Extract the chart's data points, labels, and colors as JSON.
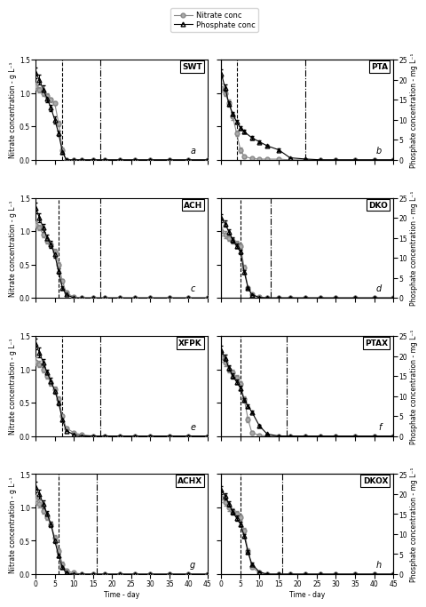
{
  "panels": [
    {
      "label": "SWT",
      "letter": "a",
      "nitrate_x": [
        0,
        1,
        2,
        3,
        4,
        5,
        6,
        7,
        8,
        10,
        12,
        15,
        18,
        22,
        26,
        30,
        35,
        40,
        45
      ],
      "nitrate_y": [
        1.1,
        1.05,
        1.0,
        0.95,
        0.9,
        0.85,
        0.55,
        0.15,
        0.0,
        0.0,
        0.0,
        0.0,
        0.0,
        0.0,
        0.0,
        0.0,
        0.0,
        0.0,
        0.0
      ],
      "nitrate_err": [
        0.05,
        0.04,
        0.04,
        0.04,
        0.03,
        0.03,
        0.04,
        0.03,
        0.0,
        0.0,
        0.0,
        0.0,
        0.0,
        0.0,
        0.0,
        0.0,
        0.0,
        0.0,
        0.0
      ],
      "phosphate_x": [
        0,
        1,
        2,
        3,
        4,
        5,
        6,
        7,
        8,
        10,
        12,
        15,
        18,
        22,
        26,
        30,
        35,
        40,
        45
      ],
      "phosphate_y": [
        1.3,
        1.2,
        1.05,
        0.92,
        0.78,
        0.6,
        0.4,
        0.12,
        0.0,
        0.0,
        0.0,
        0.0,
        0.0,
        0.0,
        0.0,
        0.0,
        0.0,
        0.0,
        0.0
      ],
      "phosphate_err": [
        0.08,
        0.07,
        0.06,
        0.06,
        0.05,
        0.05,
        0.04,
        0.03,
        0.0,
        0.0,
        0.0,
        0.0,
        0.0,
        0.0,
        0.0,
        0.0,
        0.0,
        0.0,
        0.0
      ],
      "vlines": [
        7,
        17
      ],
      "vline_styles": [
        "--",
        "-."
      ],
      "is_left": true,
      "ylim_nitrate": [
        0,
        1.5
      ],
      "ylim_phosphate": [
        0,
        1.5
      ],
      "yticks_nitrate": [
        0.0,
        0.5,
        1.0,
        1.5
      ],
      "yticks_phosphate_right": [
        0,
        5,
        10,
        15,
        20,
        25
      ]
    },
    {
      "label": "PTA",
      "letter": "b",
      "nitrate_x": [
        0,
        1,
        2,
        3,
        4,
        5,
        6,
        8,
        10,
        12,
        15,
        18,
        22,
        26,
        30,
        35,
        40,
        45
      ],
      "nitrate_y": [
        1.08,
        1.0,
        0.85,
        0.65,
        0.4,
        0.15,
        0.05,
        0.02,
        0.01,
        0.01,
        0.01,
        0.0,
        0.0,
        0.0,
        0.0,
        0.0,
        0.0,
        0.0
      ],
      "nitrate_err": [
        0.06,
        0.05,
        0.05,
        0.05,
        0.04,
        0.04,
        0.02,
        0.01,
        0.0,
        0.0,
        0.0,
        0.0,
        0.0,
        0.0,
        0.0,
        0.0,
        0.0,
        0.0
      ],
      "phosphate_x": [
        0,
        1,
        2,
        3,
        4,
        5,
        6,
        8,
        10,
        12,
        15,
        18,
        22,
        26,
        30,
        35,
        40,
        45
      ],
      "phosphate_y": [
        21.5,
        18.0,
        14.0,
        11.5,
        9.5,
        8.0,
        7.0,
        5.5,
        4.5,
        3.5,
        2.5,
        0.5,
        0.2,
        0.0,
        0.0,
        0.0,
        0.0,
        0.0
      ],
      "phosphate_err": [
        1.0,
        0.8,
        0.6,
        0.5,
        0.5,
        0.5,
        0.4,
        0.4,
        0.4,
        0.3,
        0.3,
        0.1,
        0.0,
        0.0,
        0.0,
        0.0,
        0.0,
        0.0
      ],
      "vlines": [
        4,
        22
      ],
      "vline_styles": [
        "--",
        "-."
      ],
      "is_left": false,
      "ylim_nitrate": [
        0,
        1.5
      ],
      "ylim_phosphate": [
        0,
        25
      ],
      "yticks_nitrate": [
        0.0,
        0.5,
        1.0,
        1.5
      ],
      "yticks_phosphate_right": [
        0,
        5,
        10,
        15,
        20,
        25
      ]
    },
    {
      "label": "ACH",
      "letter": "c",
      "nitrate_x": [
        0,
        1,
        2,
        3,
        4,
        5,
        6,
        7,
        8,
        10,
        12,
        15,
        18,
        22,
        26,
        30,
        35,
        40,
        45
      ],
      "nitrate_y": [
        1.1,
        1.05,
        0.95,
        0.85,
        0.8,
        0.7,
        0.5,
        0.25,
        0.08,
        0.01,
        0.0,
        0.0,
        0.0,
        0.0,
        0.0,
        0.0,
        0.0,
        0.0,
        0.0
      ],
      "nitrate_err": [
        0.05,
        0.04,
        0.04,
        0.04,
        0.04,
        0.04,
        0.04,
        0.03,
        0.02,
        0.01,
        0.0,
        0.0,
        0.0,
        0.0,
        0.0,
        0.0,
        0.0,
        0.0,
        0.0
      ],
      "phosphate_x": [
        0,
        1,
        2,
        3,
        4,
        5,
        6,
        7,
        8,
        10,
        12,
        15,
        18,
        22,
        26,
        30,
        35,
        40,
        45
      ],
      "phosphate_y": [
        1.35,
        1.2,
        1.05,
        0.9,
        0.8,
        0.65,
        0.4,
        0.15,
        0.05,
        0.0,
        0.0,
        0.0,
        0.0,
        0.0,
        0.0,
        0.0,
        0.0,
        0.0,
        0.0
      ],
      "phosphate_err": [
        0.08,
        0.07,
        0.06,
        0.05,
        0.05,
        0.05,
        0.04,
        0.03,
        0.01,
        0.0,
        0.0,
        0.0,
        0.0,
        0.0,
        0.0,
        0.0,
        0.0,
        0.0,
        0.0
      ],
      "vlines": [
        6,
        17
      ],
      "vline_styles": [
        "--",
        "-."
      ],
      "is_left": true,
      "ylim_nitrate": [
        0,
        1.5
      ],
      "ylim_phosphate": [
        0,
        1.5
      ],
      "yticks_nitrate": [
        0.0,
        0.5,
        1.0,
        1.5
      ],
      "yticks_phosphate_right": [
        0,
        5,
        10,
        15,
        20,
        25
      ]
    },
    {
      "label": "DKO",
      "letter": "d",
      "nitrate_x": [
        0,
        1,
        2,
        3,
        4,
        5,
        6,
        7,
        8,
        10,
        12,
        15,
        18,
        22,
        26,
        30,
        35,
        40,
        45
      ],
      "nitrate_y": [
        1.0,
        0.95,
        0.9,
        0.85,
        0.82,
        0.78,
        0.45,
        0.15,
        0.05,
        0.01,
        0.0,
        0.0,
        0.0,
        0.0,
        0.0,
        0.0,
        0.0,
        0.0,
        0.0
      ],
      "nitrate_err": [
        0.06,
        0.05,
        0.05,
        0.04,
        0.04,
        0.04,
        0.04,
        0.03,
        0.02,
        0.01,
        0.0,
        0.0,
        0.0,
        0.0,
        0.0,
        0.0,
        0.0,
        0.0,
        0.0
      ],
      "phosphate_x": [
        0,
        1,
        2,
        3,
        4,
        5,
        6,
        7,
        8,
        10,
        12,
        15,
        18,
        22,
        26,
        30,
        35,
        40,
        45
      ],
      "phosphate_y": [
        20.0,
        18.5,
        16.5,
        14.5,
        13.0,
        11.5,
        6.5,
        2.5,
        0.8,
        0.1,
        0.0,
        0.0,
        0.0,
        0.0,
        0.0,
        0.0,
        0.0,
        0.0,
        0.0
      ],
      "phosphate_err": [
        1.0,
        0.8,
        0.7,
        0.6,
        0.6,
        0.6,
        0.5,
        0.3,
        0.1,
        0.0,
        0.0,
        0.0,
        0.0,
        0.0,
        0.0,
        0.0,
        0.0,
        0.0,
        0.0
      ],
      "vlines": [
        5,
        13
      ],
      "vline_styles": [
        "--",
        "-."
      ],
      "is_left": false,
      "ylim_nitrate": [
        0,
        1.5
      ],
      "ylim_phosphate": [
        0,
        25
      ],
      "yticks_nitrate": [
        0.0,
        0.5,
        1.0,
        1.5
      ],
      "yticks_phosphate_right": [
        0,
        5,
        10,
        15,
        20,
        25
      ]
    },
    {
      "label": "XFPK",
      "letter": "e",
      "nitrate_x": [
        0,
        1,
        2,
        3,
        4,
        5,
        6,
        7,
        8,
        10,
        12,
        15,
        18,
        22,
        26,
        30,
        35,
        40,
        45
      ],
      "nitrate_y": [
        1.12,
        1.08,
        1.0,
        0.9,
        0.8,
        0.7,
        0.55,
        0.3,
        0.12,
        0.05,
        0.02,
        0.0,
        0.0,
        0.0,
        0.0,
        0.0,
        0.0,
        0.0,
        0.0
      ],
      "nitrate_err": [
        0.06,
        0.05,
        0.05,
        0.04,
        0.04,
        0.04,
        0.04,
        0.03,
        0.02,
        0.01,
        0.0,
        0.0,
        0.0,
        0.0,
        0.0,
        0.0,
        0.0,
        0.0,
        0.0
      ],
      "phosphate_x": [
        0,
        1,
        2,
        3,
        4,
        5,
        6,
        7,
        8,
        10,
        12,
        15,
        18,
        22,
        26,
        30,
        35,
        40,
        45
      ],
      "phosphate_y": [
        1.38,
        1.25,
        1.1,
        0.95,
        0.82,
        0.68,
        0.5,
        0.25,
        0.08,
        0.02,
        0.0,
        0.0,
        0.0,
        0.0,
        0.0,
        0.0,
        0.0,
        0.0,
        0.0
      ],
      "phosphate_err": [
        0.08,
        0.07,
        0.06,
        0.05,
        0.05,
        0.05,
        0.04,
        0.03,
        0.01,
        0.0,
        0.0,
        0.0,
        0.0,
        0.0,
        0.0,
        0.0,
        0.0,
        0.0,
        0.0
      ],
      "vlines": [
        7,
        17
      ],
      "vline_styles": [
        "--",
        "-."
      ],
      "is_left": true,
      "ylim_nitrate": [
        0,
        1.5
      ],
      "ylim_phosphate": [
        0,
        1.5
      ],
      "yticks_nitrate": [
        0.0,
        0.5,
        1.0,
        1.5
      ],
      "yticks_phosphate_right": [
        0,
        5,
        10,
        15,
        20,
        25
      ]
    },
    {
      "label": "PTAX",
      "letter": "f",
      "nitrate_x": [
        0,
        1,
        2,
        3,
        4,
        5,
        6,
        7,
        8,
        10,
        12,
        15,
        18,
        22,
        26,
        30,
        35,
        40,
        45
      ],
      "nitrate_y": [
        1.18,
        1.1,
        1.0,
        0.95,
        0.88,
        0.78,
        0.55,
        0.25,
        0.05,
        0.01,
        0.0,
        0.0,
        0.0,
        0.0,
        0.0,
        0.0,
        0.0,
        0.0,
        0.0
      ],
      "nitrate_err": [
        0.06,
        0.05,
        0.05,
        0.04,
        0.04,
        0.04,
        0.04,
        0.04,
        0.02,
        0.01,
        0.0,
        0.0,
        0.0,
        0.0,
        0.0,
        0.0,
        0.0,
        0.0,
        0.0
      ],
      "phosphate_x": [
        0,
        1,
        2,
        3,
        4,
        5,
        6,
        7,
        8,
        10,
        12,
        15,
        18,
        22,
        26,
        30,
        35,
        40,
        45
      ],
      "phosphate_y": [
        21.5,
        19.5,
        17.0,
        15.0,
        13.5,
        12.0,
        9.0,
        7.5,
        6.0,
        2.5,
        0.5,
        0.0,
        0.0,
        0.0,
        0.0,
        0.0,
        0.0,
        0.0,
        0.0
      ],
      "phosphate_err": [
        1.0,
        0.8,
        0.7,
        0.6,
        0.6,
        0.5,
        0.5,
        0.5,
        0.4,
        0.3,
        0.1,
        0.0,
        0.0,
        0.0,
        0.0,
        0.0,
        0.0,
        0.0,
        0.0
      ],
      "vlines": [
        5,
        17
      ],
      "vline_styles": [
        "--",
        "-."
      ],
      "is_left": false,
      "ylim_nitrate": [
        0,
        1.5
      ],
      "ylim_phosphate": [
        0,
        25
      ],
      "yticks_nitrate": [
        0.0,
        0.5,
        1.0,
        1.5
      ],
      "yticks_phosphate_right": [
        0,
        5,
        10,
        15,
        20,
        25
      ]
    },
    {
      "label": "ACHX",
      "letter": "g",
      "nitrate_x": [
        0,
        1,
        2,
        3,
        4,
        5,
        6,
        7,
        8,
        10,
        12,
        15,
        18,
        22,
        26,
        30,
        35,
        40,
        45
      ],
      "nitrate_y": [
        1.12,
        1.05,
        0.95,
        0.85,
        0.75,
        0.55,
        0.35,
        0.15,
        0.05,
        0.02,
        0.0,
        0.0,
        0.0,
        0.0,
        0.0,
        0.0,
        0.0,
        0.0,
        0.0
      ],
      "nitrate_err": [
        0.07,
        0.05,
        0.05,
        0.04,
        0.04,
        0.04,
        0.04,
        0.03,
        0.02,
        0.01,
        0.0,
        0.0,
        0.0,
        0.0,
        0.0,
        0.0,
        0.0,
        0.0,
        0.0
      ],
      "phosphate_x": [
        0,
        1,
        2,
        3,
        4,
        5,
        6,
        7,
        8,
        10,
        12,
        15,
        18,
        22,
        26,
        30,
        35,
        40,
        45
      ],
      "phosphate_y": [
        1.3,
        1.2,
        1.05,
        0.9,
        0.75,
        0.5,
        0.28,
        0.1,
        0.02,
        0.0,
        0.0,
        0.0,
        0.0,
        0.0,
        0.0,
        0.0,
        0.0,
        0.0,
        0.0
      ],
      "phosphate_err": [
        0.08,
        0.07,
        0.06,
        0.05,
        0.04,
        0.04,
        0.03,
        0.02,
        0.01,
        0.0,
        0.0,
        0.0,
        0.0,
        0.0,
        0.0,
        0.0,
        0.0,
        0.0,
        0.0
      ],
      "vlines": [
        6,
        16
      ],
      "vline_styles": [
        "--",
        "-."
      ],
      "is_left": true,
      "ylim_nitrate": [
        0,
        1.5
      ],
      "ylim_phosphate": [
        0,
        1.5
      ],
      "yticks_nitrate": [
        0.0,
        0.5,
        1.0,
        1.5
      ],
      "yticks_phosphate_right": [
        0,
        5,
        10,
        15,
        20,
        25
      ]
    },
    {
      "label": "DKOX",
      "letter": "h",
      "nitrate_x": [
        0,
        1,
        2,
        3,
        4,
        5,
        6,
        7,
        8,
        10,
        12,
        15,
        18,
        22,
        26,
        30,
        35,
        40,
        45
      ],
      "nitrate_y": [
        1.15,
        1.08,
        1.0,
        0.95,
        0.9,
        0.85,
        0.65,
        0.35,
        0.1,
        0.02,
        0.0,
        0.0,
        0.0,
        0.0,
        0.0,
        0.0,
        0.0,
        0.0,
        0.0
      ],
      "nitrate_err": [
        0.07,
        0.05,
        0.05,
        0.04,
        0.04,
        0.04,
        0.04,
        0.04,
        0.02,
        0.01,
        0.0,
        0.0,
        0.0,
        0.0,
        0.0,
        0.0,
        0.0,
        0.0,
        0.0
      ],
      "phosphate_x": [
        0,
        1,
        2,
        3,
        4,
        5,
        6,
        7,
        8,
        10,
        12,
        15,
        18,
        22,
        26,
        30,
        35,
        40,
        45
      ],
      "phosphate_y": [
        21.0,
        19.5,
        17.5,
        15.5,
        14.0,
        12.5,
        9.5,
        5.5,
        2.5,
        0.5,
        0.0,
        0.0,
        0.0,
        0.0,
        0.0,
        0.0,
        0.0,
        0.0,
        0.0
      ],
      "phosphate_err": [
        1.0,
        0.8,
        0.7,
        0.6,
        0.6,
        0.6,
        0.5,
        0.4,
        0.3,
        0.1,
        0.0,
        0.0,
        0.0,
        0.0,
        0.0,
        0.0,
        0.0,
        0.0,
        0.0
      ],
      "vlines": [
        5,
        16
      ],
      "vline_styles": [
        "--",
        "-."
      ],
      "is_left": false,
      "ylim_nitrate": [
        0,
        1.5
      ],
      "ylim_phosphate": [
        0,
        25
      ],
      "yticks_nitrate": [
        0.0,
        0.5,
        1.0,
        1.5
      ],
      "yticks_phosphate_right": [
        0,
        5,
        10,
        15,
        20,
        25
      ]
    }
  ],
  "nitrate_color": "#888888",
  "phosphate_color": "#000000",
  "nitrate_marker": "o",
  "phosphate_marker": "^",
  "marker_size": 3.5,
  "line_width": 0.8,
  "xlabel": "Time - day",
  "ylabel_left": "Nitrate concentration - g L⁻¹",
  "ylabel_right": "Phosphate concentration - mg L⁻¹",
  "xlim": [
    0,
    45
  ],
  "xticks": [
    0,
    5,
    10,
    15,
    20,
    25,
    30,
    35,
    40,
    45
  ],
  "legend_nitrate": "Nitrate conc",
  "legend_phosphate": "Phosphate conc",
  "background_color": "#ffffff",
  "tick_fontsize": 5.5,
  "label_fontsize": 5.5,
  "letter_fontsize": 7,
  "panel_label_fontsize": 6.5
}
